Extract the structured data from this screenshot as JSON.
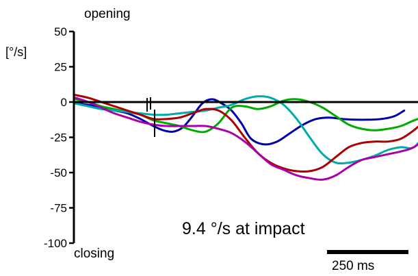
{
  "chart_data": {
    "type": "line",
    "top_label": "opening",
    "bottom_label": "closing",
    "ylabel": "[°/s]",
    "yticks": [
      50,
      25,
      0,
      -25,
      -50,
      -75,
      -100
    ],
    "ylim": [
      -100,
      50
    ],
    "annotation": "9.4 °/s at impact",
    "scale_bar": {
      "label": "250 ms",
      "duration_ms": 250
    },
    "xlim_ms": [
      0,
      1250
    ],
    "series": [
      {
        "color": "#0000aa",
        "x": [
          0,
          40,
          80,
          120,
          160,
          200,
          240,
          270,
          300,
          330,
          360,
          390,
          420,
          450,
          480,
          510,
          540,
          580,
          620,
          660,
          700,
          740,
          780,
          820,
          860,
          900,
          940,
          980,
          1010
        ],
        "y": [
          -1,
          -2,
          -4,
          -6,
          -8,
          -12,
          -17,
          -20,
          -21,
          -18,
          -10,
          -1,
          2,
          -1,
          -6,
          -15,
          -26,
          -30,
          -28,
          -22,
          -16,
          -12,
          -11,
          -12,
          -12.5,
          -12.5,
          -12,
          -10,
          -6
        ]
      },
      {
        "color": "#00aa00",
        "x": [
          0,
          40,
          80,
          120,
          160,
          200,
          240,
          280,
          320,
          360,
          400,
          440,
          480,
          520,
          560,
          600,
          640,
          680,
          720,
          760,
          800,
          840,
          880,
          920,
          960,
          1000,
          1040,
          1080
        ],
        "y": [
          2,
          0,
          -3,
          -5,
          -7,
          -9,
          -13,
          -15,
          -17,
          -20,
          -21,
          -15,
          -4,
          -3,
          -5,
          -3,
          1,
          2,
          0,
          -4,
          -10,
          -16,
          -19,
          -20,
          -19,
          -17,
          -13,
          -10
        ]
      },
      {
        "color": "#00aaaa",
        "x": [
          0,
          40,
          80,
          120,
          160,
          200,
          240,
          280,
          320,
          360,
          400,
          440,
          480,
          520,
          560,
          600,
          640,
          680,
          720,
          760,
          800,
          840,
          880,
          920,
          960,
          1000,
          1040,
          1080
        ],
        "y": [
          -1,
          -3,
          -5,
          -6,
          -7,
          -8,
          -9,
          -9,
          -8,
          -7,
          -6,
          -4,
          -2,
          2,
          4,
          3,
          -2,
          -12,
          -25,
          -37,
          -43,
          -43,
          -41,
          -38,
          -34,
          -32,
          -32,
          -21
        ]
      },
      {
        "color": "#aa0000",
        "x": [
          0,
          40,
          80,
          120,
          160,
          200,
          240,
          280,
          320,
          360,
          400,
          440,
          480,
          520,
          560,
          600,
          640,
          680,
          720,
          760,
          800,
          840,
          880,
          920,
          960,
          1000,
          1040,
          1080,
          1120,
          1160
        ],
        "y": [
          5,
          3,
          0,
          -3,
          -6,
          -9,
          -12,
          -12,
          -11,
          -8,
          -5,
          -6,
          -13,
          -25,
          -36,
          -43,
          -47,
          -49,
          -49,
          -46,
          -39,
          -32,
          -29,
          -28,
          -28,
          -26,
          -20,
          -12,
          -5,
          -1
        ]
      },
      {
        "color": "#aa00aa",
        "x": [
          0,
          40,
          80,
          120,
          160,
          200,
          240,
          280,
          320,
          360,
          400,
          440,
          480,
          520,
          560,
          600,
          640,
          680,
          720,
          760,
          800,
          840,
          880,
          920,
          960,
          1000,
          1040,
          1080
        ],
        "y": [
          3,
          0,
          -4,
          -8,
          -11,
          -14,
          -16,
          -17,
          -17,
          -17,
          -17,
          -19,
          -22,
          -28,
          -36,
          -44,
          -48,
          -52,
          -54,
          -55,
          -52,
          -46,
          -41,
          -39,
          -37,
          -35,
          -32,
          -25
        ]
      }
    ]
  }
}
